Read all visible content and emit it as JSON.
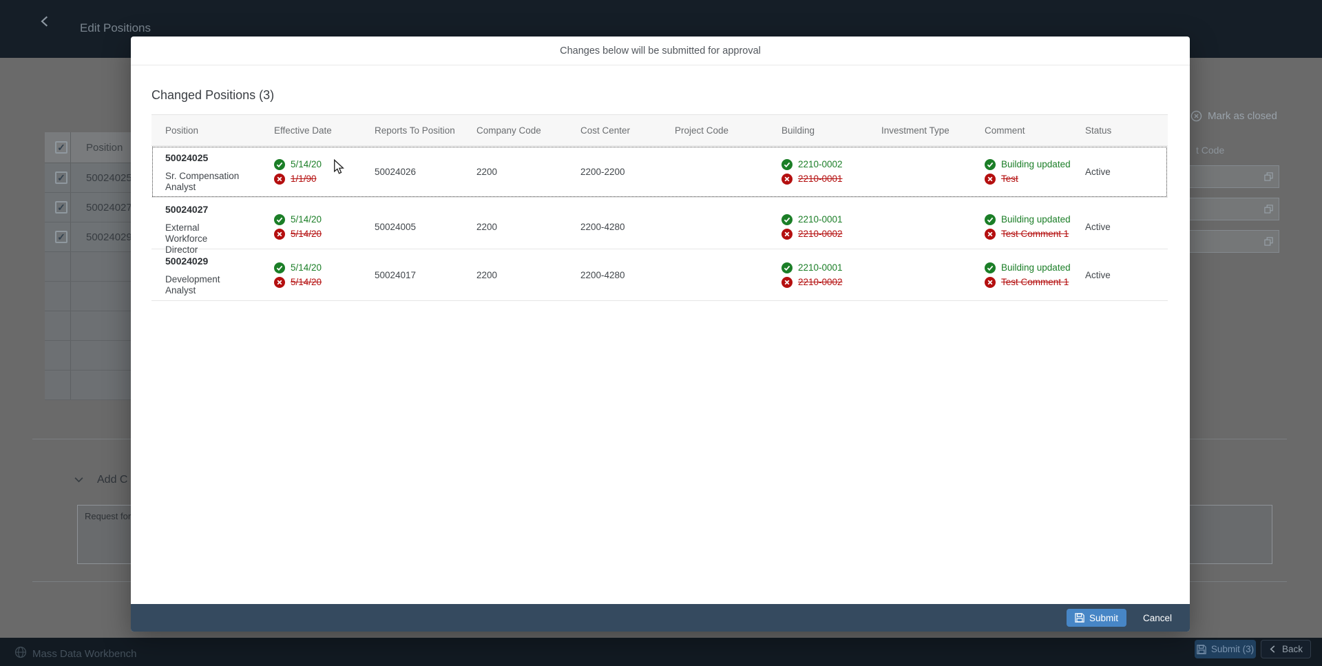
{
  "app": {
    "title": "Edit Positions"
  },
  "dialog": {
    "header": "Changes below will be submitted for approval",
    "section_title": "Changed Positions (3)",
    "table": {
      "columns": [
        "Position",
        "Effective Date",
        "Reports To Position",
        "Company Code",
        "Cost Center",
        "Project Code",
        "Building",
        "Investment Type",
        "Comment",
        "Status"
      ],
      "rows": [
        {
          "position_id": "50024025",
          "position_title": "Sr. Compensation Analyst",
          "effective_date_new": "5/14/20",
          "effective_date_old": "1/1/90",
          "reports_to": "50024026",
          "company_code": "2200",
          "cost_center": "2200-2200",
          "project_code": "",
          "building_new": "2210-0002",
          "building_old": "2210-0001",
          "investment_type": "",
          "comment_new": "Building updated",
          "comment_old": "Test",
          "status": "Active"
        },
        {
          "position_id": "50024027",
          "position_title": "External Workforce Director",
          "effective_date_new": "5/14/20",
          "effective_date_old": "5/14/20",
          "reports_to": "50024005",
          "company_code": "2200",
          "cost_center": "2200-4280",
          "project_code": "",
          "building_new": "2210-0001",
          "building_old": "2210-0002",
          "investment_type": "",
          "comment_new": "Building updated",
          "comment_old": "Test Comment 1",
          "status": "Active"
        },
        {
          "position_id": "50024029",
          "position_title": "Development Analyst",
          "effective_date_new": "5/14/20",
          "effective_date_old": "5/14/20",
          "reports_to": "50024017",
          "company_code": "2200",
          "cost_center": "2200-4280",
          "project_code": "",
          "building_new": "2210-0001",
          "building_old": "2210-0002",
          "investment_type": "",
          "comment_new": "Building updated",
          "comment_old": "Test Comment 1",
          "status": "Active"
        }
      ]
    },
    "footer": {
      "submit_label": "Submit",
      "cancel_label": "Cancel"
    }
  },
  "background": {
    "left_table": {
      "header": "Position",
      "rows": [
        "50024025",
        "50024027",
        "50024029"
      ]
    },
    "mark_as_closed_label": "Mark as closed",
    "partial_column_header": "t Code",
    "add_section_label": "Add C",
    "comment_text": "Request for",
    "footer_bar": {
      "app_label": "Mass Data Workbench",
      "submit_label": "Submit (3)",
      "back_label": "Back"
    }
  },
  "colors": {
    "positive_green": "#1b7e27",
    "negative_red": "#bb0000",
    "shell_bar": "#354a5f",
    "submit_accent": "#4786c6",
    "modal_background": "#ffffff"
  }
}
